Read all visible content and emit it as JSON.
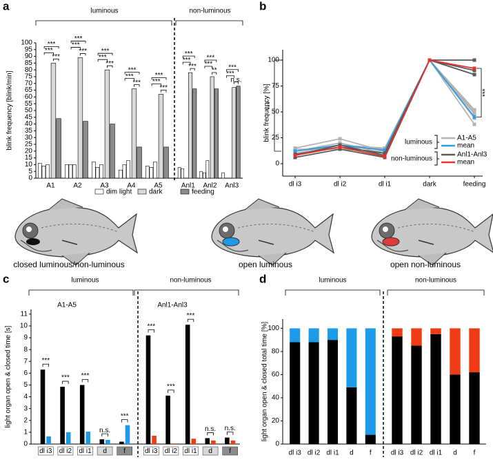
{
  "chart_data": [
    {
      "type": "grouped_bar",
      "label": "a",
      "ylabel": "blink frequency [blink/min]",
      "ylim": [
        0,
        100
      ],
      "yticks": [
        0,
        5,
        10,
        15,
        20,
        25,
        30,
        35,
        40,
        45,
        50,
        55,
        60,
        65,
        70,
        75,
        80,
        85,
        90,
        95,
        100
      ],
      "groups": [
        {
          "name": "luminous",
          "categories": [
            "A1",
            "A2",
            "A3",
            "A4",
            "A5"
          ]
        },
        {
          "name": "non-luminous",
          "categories": [
            "Anl1",
            "Anl2",
            "Anl3"
          ]
        }
      ],
      "series": [
        {
          "name": "dim light",
          "color": "#ffffff",
          "values": [
            [
              11,
              9,
              10
            ],
            [
              10,
              10,
              10
            ],
            [
              12,
              8,
              10
            ],
            [
              6,
              10,
              13
            ],
            [
              9,
              8,
              12
            ],
            [
              8,
              7,
              null
            ],
            [
              5,
              4,
              13
            ],
            [
              4,
              null,
              null
            ]
          ]
        },
        {
          "name": "dark",
          "color": "#d9d9d9",
          "values": [
            85,
            89,
            80,
            66,
            62,
            78,
            75,
            67
          ]
        },
        {
          "name": "feeding",
          "color": "#8c8c8c",
          "values": [
            44,
            42,
            40,
            23,
            23,
            66,
            66,
            68
          ]
        }
      ],
      "significance": [
        [
          "***",
          "***",
          "***"
        ],
        [
          "***",
          "***",
          "***"
        ],
        [
          "***",
          "***",
          "***"
        ],
        [
          "***",
          "***",
          "***"
        ],
        [
          "***",
          "***",
          "***"
        ],
        [
          "***",
          "***",
          "***"
        ],
        [
          "***",
          "**",
          "***"
        ],
        [
          "***",
          "n.s.",
          "***"
        ]
      ]
    },
    {
      "type": "line",
      "label": "b",
      "ylabel": "blink frequency [%]",
      "categories": [
        "dl i3",
        "dl i2",
        "dl i1",
        "dark",
        "feeding"
      ],
      "ylim": [
        -12,
        110
      ],
      "yticks": [
        0,
        25,
        50,
        75,
        100
      ],
      "series": [
        {
          "name": "A1-A5",
          "color": "#b3b3b3",
          "values": [
            [
              12,
              20,
              10,
              100,
              38
            ],
            [
              8,
              16,
              14,
              100,
              44
            ],
            [
              15,
              24,
              12,
              100,
              48
            ],
            [
              10,
              18,
              15,
              100,
              50
            ],
            [
              14,
              14,
              12,
              100,
              52
            ]
          ]
        },
        {
          "name": "mean",
          "color": "#2f9be0",
          "values": [
            [
              12,
              18,
              13,
              100,
              45
            ]
          ]
        },
        {
          "name": "Anl1-Anl3",
          "color": "#595959",
          "values": [
            [
              8,
              18,
              8,
              100,
              100
            ],
            [
              6,
              14,
              6,
              100,
              86
            ],
            [
              9,
              16,
              10,
              100,
              90
            ]
          ]
        },
        {
          "name": "mean",
          "color": "#e8302a",
          "values": [
            [
              8,
              16,
              7,
              100,
              92
            ]
          ]
        }
      ],
      "legend_groups": [
        "luminous",
        "non-luminous"
      ],
      "significance": [
        "***",
        "***"
      ]
    },
    {
      "type": "bar",
      "label": "c",
      "ylabel": "light organ open & closed time [s]",
      "ylim": [
        0,
        11.4
      ],
      "yticks": [
        0,
        1,
        2,
        3,
        4,
        5,
        6,
        7,
        8,
        9,
        10,
        11
      ],
      "groups": [
        {
          "name": "luminous",
          "subtitle": "A1-A5",
          "categories": [
            "dl i3",
            "dl i2",
            "dl i1",
            "d",
            "f"
          ],
          "series": [
            {
              "color": "#000000",
              "values": [
                6.3,
                4.85,
                5.0,
                0.4,
                0.2
              ]
            },
            {
              "color": "#1e9be8",
              "values": [
                0.65,
                1.0,
                1.05,
                0.35,
                1.6
              ]
            }
          ],
          "significance": [
            "***",
            "***",
            "***",
            "n.s.",
            "***"
          ]
        },
        {
          "name": "non-luminous",
          "subtitle": "Anl1-Anl3",
          "categories": [
            "dl i3",
            "dl i2",
            "dl i1",
            "d",
            "f"
          ],
          "series": [
            {
              "color": "#000000",
              "values": [
                9.2,
                4.1,
                10.1,
                0.5,
                0.55
              ]
            },
            {
              "color": "#f03c14",
              "values": [
                0.7,
                0.05,
                0.45,
                0.3,
                0.3
              ]
            }
          ],
          "significance": [
            "***",
            "***",
            "***",
            "n.s.",
            "n.s."
          ]
        }
      ]
    },
    {
      "type": "stacked_bar",
      "label": "d",
      "ylabel": "light organ open & closed total time [%]",
      "ylim": [
        0,
        108
      ],
      "yticks": [
        0,
        20,
        40,
        60,
        80,
        100
      ],
      "groups": [
        {
          "name": "luminous",
          "categories": [
            "dl i3",
            "dl i2",
            "dl i1",
            "d",
            "f"
          ],
          "series": [
            {
              "color": "#000000",
              "values": [
                88,
                88,
                90,
                49,
                8
              ]
            },
            {
              "color": "#1e9be8",
              "values": [
                12,
                12,
                10,
                51,
                92
              ]
            }
          ]
        },
        {
          "name": "non-luminous",
          "categories": [
            "dl i3",
            "dl i2",
            "dl i1",
            "d",
            "f"
          ],
          "series": [
            {
              "color": "#000000",
              "values": [
                93,
                85,
                95,
                60,
                62
              ]
            },
            {
              "color": "#f03c14",
              "values": [
                7,
                15,
                5,
                40,
                38
              ]
            }
          ]
        }
      ]
    }
  ],
  "illustrations": {
    "captions": [
      "closed luminous/non-luminous",
      "open luminous",
      "open non-luminous"
    ]
  }
}
